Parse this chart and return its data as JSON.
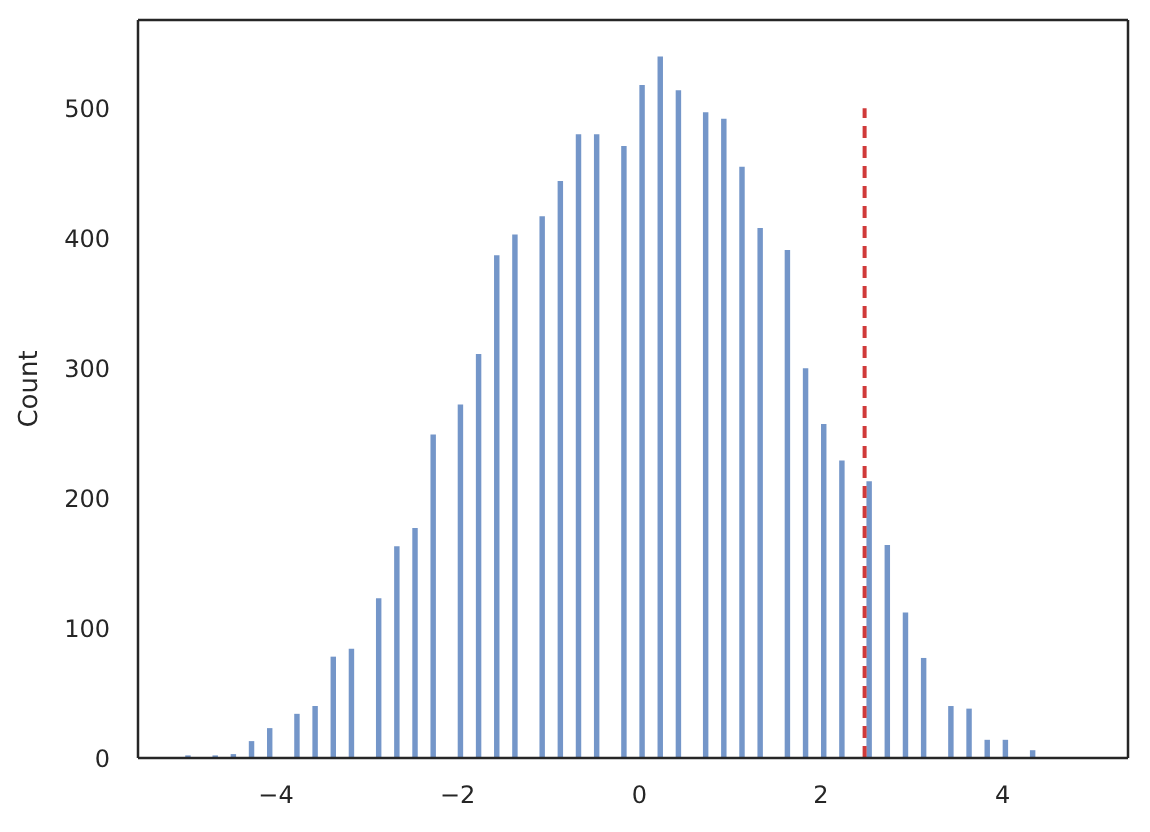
{
  "chart_data": {
    "type": "histogram",
    "ylabel": "Count",
    "color": "#7496c9",
    "bins": [
      -5.0,
      -4.94,
      -4.7,
      -4.64,
      -4.5,
      -4.44,
      -4.3,
      -4.24,
      -4.1,
      -4.04,
      -3.8,
      -3.74,
      -3.6,
      -3.54,
      -3.4,
      -3.34,
      -3.2,
      -3.14,
      -2.9,
      -2.84,
      -2.7,
      -2.64,
      -2.5,
      -2.44,
      -2.3,
      -2.24,
      -2.0,
      -1.94,
      -1.8,
      -1.74,
      -1.6,
      -1.54,
      -1.4,
      -1.34,
      -1.1,
      -1.04,
      -0.9,
      -0.84,
      -0.7,
      -0.64,
      -0.5,
      -0.44,
      -0.2,
      -0.14,
      0.0,
      0.06,
      0.2,
      0.26,
      0.4,
      0.46,
      0.7,
      0.76,
      0.9,
      0.96,
      1.1,
      1.16,
      1.3,
      1.36,
      1.6,
      1.66,
      1.8,
      1.86,
      2.0,
      2.06,
      2.2,
      2.26,
      2.5,
      2.56,
      2.7,
      2.76,
      2.9,
      2.96,
      3.1,
      3.16,
      3.4,
      3.46,
      3.6,
      3.66,
      3.8,
      3.86,
      4.0,
      4.06,
      4.3,
      4.36
    ],
    "values": [
      2,
      0,
      2,
      0,
      3,
      0,
      13,
      0,
      23,
      0,
      34,
      0,
      40,
      0,
      78,
      0,
      84,
      0,
      123,
      0,
      163,
      0,
      177,
      0,
      249,
      0,
      272,
      0,
      311,
      0,
      387,
      0,
      403,
      0,
      417,
      0,
      444,
      0,
      480,
      0,
      480,
      0,
      471,
      0,
      518,
      0,
      540,
      0,
      514,
      0,
      497,
      0,
      492,
      0,
      455,
      0,
      408,
      0,
      391,
      0,
      300,
      0,
      257,
      0,
      229,
      0,
      213,
      0,
      164,
      0,
      112,
      0,
      77,
      0,
      40,
      0,
      38,
      0,
      14,
      0,
      14,
      0,
      6
    ],
    "series": [
      {
        "type": "line",
        "x": [
          2.48,
          2.48
        ],
        "values": [
          0,
          500
        ],
        "color": "#d03a3a",
        "line_style": "dashed"
      }
    ],
    "xlim": [
      -5.52,
      5.38
    ],
    "xticks": [
      -4,
      -2,
      0,
      2,
      4
    ],
    "ylim": [
      0,
      568
    ],
    "yticks": [
      0,
      100,
      200,
      300,
      400,
      500
    ],
    "grid": false
  }
}
